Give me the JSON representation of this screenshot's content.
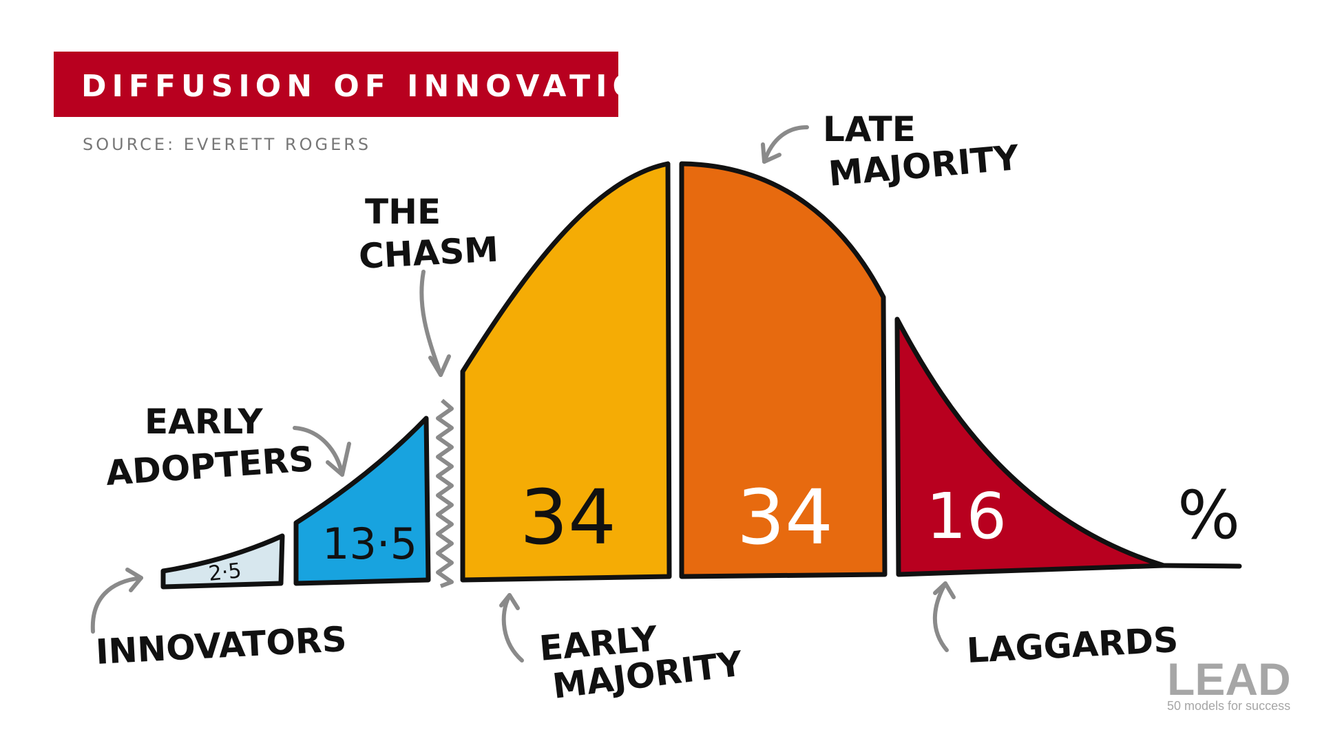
{
  "title": "DIFFUSION OF INNOVATION",
  "source": "SOURCE: EVERETT ROGERS",
  "percent_sign": "%",
  "chasm_label": [
    "THE",
    "CHASM"
  ],
  "colors": {
    "title_bg": "#b8001f",
    "innovators": "#d7e7ee",
    "early_adopters": "#18a3df",
    "early_majority": "#f5ac05",
    "late_majority": "#e76a0f",
    "laggards": "#b8001f",
    "arrow": "#8a8a8a",
    "outline": "#111111"
  },
  "segments": [
    {
      "id": "innovators",
      "label": [
        "INNOVATORS"
      ],
      "value": "2·5"
    },
    {
      "id": "early_adopters",
      "label": [
        "EARLY",
        "ADOPTERS"
      ],
      "value": "13·5"
    },
    {
      "id": "early_majority",
      "label": [
        "EARLY",
        "MAJORITY"
      ],
      "value": "34"
    },
    {
      "id": "late_majority",
      "label": [
        "LATE",
        "MAJORITY"
      ],
      "value": "34"
    },
    {
      "id": "laggards",
      "label": [
        "LAGGARDS"
      ],
      "value": "16"
    }
  ],
  "logo": {
    "name": "LEAD",
    "tagline": "50 models for success"
  }
}
